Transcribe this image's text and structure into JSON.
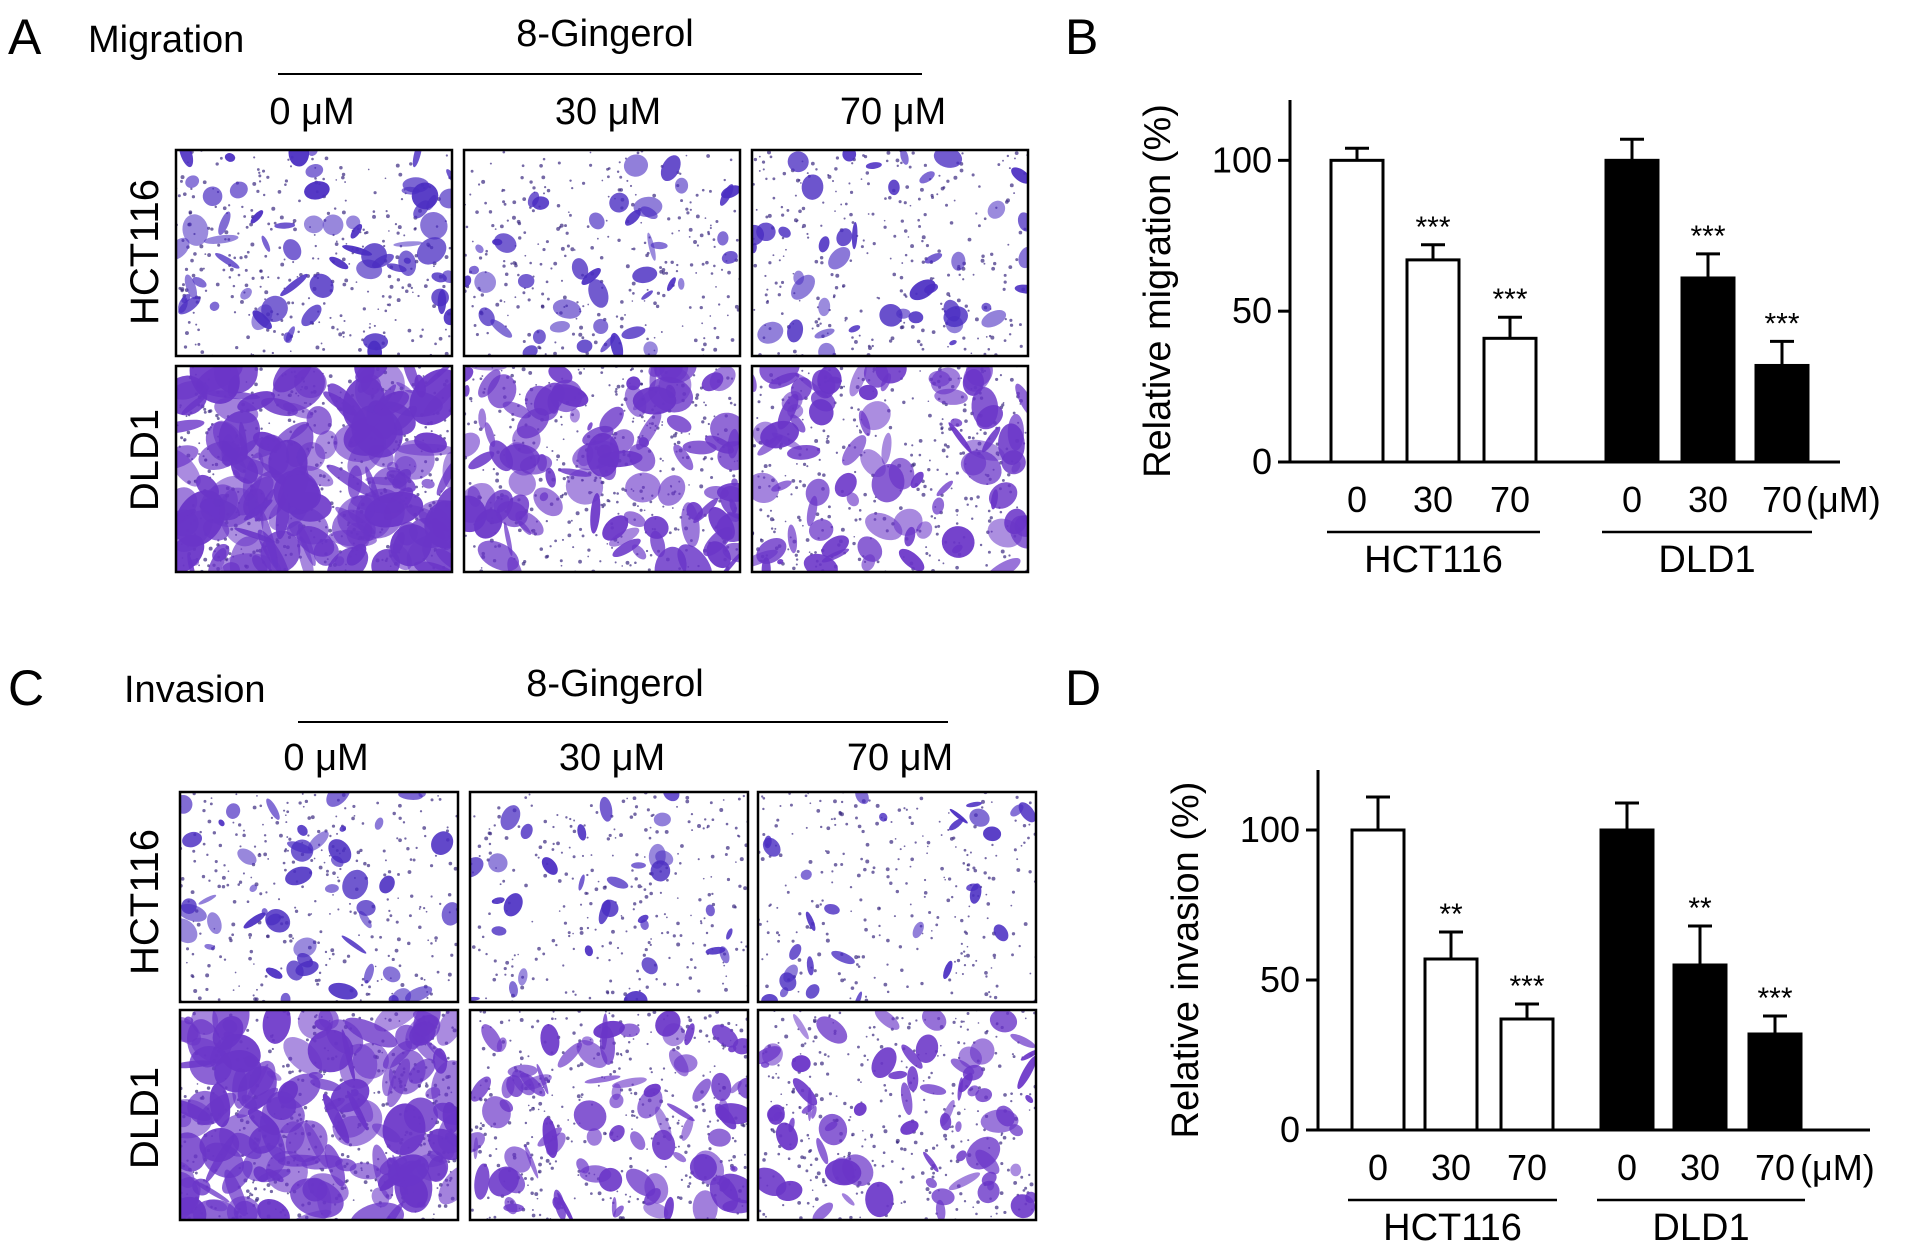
{
  "panels": {
    "A": {
      "letter": "A",
      "assay": "Migration",
      "treatment": "8-Gingerol",
      "concentrations": [
        "0 μM",
        "30 μM",
        "70 μM"
      ],
      "rows": [
        "HCT116",
        "DLD1"
      ]
    },
    "C": {
      "letter": "C",
      "assay": "Invasion",
      "treatment": "8-Gingerol",
      "concentrations": [
        "0 μM",
        "30 μM",
        "70 μM"
      ],
      "rows": [
        "HCT116",
        "DLD1"
      ]
    },
    "B": {
      "letter": "B"
    },
    "D": {
      "letter": "D"
    }
  },
  "colors": {
    "stain_dark": "#4b2ec2",
    "stain_light": "#6a35c8",
    "bar_hct116": "#ffffff",
    "bar_dld1": "#000000"
  },
  "chart_data": [
    {
      "type": "bar",
      "panel": "B",
      "ylabel": "Relative migration (%)",
      "ylim": [
        0,
        120
      ],
      "yticks": [
        "0",
        "50",
        "100"
      ],
      "categories": [
        "0",
        "30",
        "70"
      ],
      "unit": "(μM)",
      "series": [
        {
          "name": "HCT116",
          "values": [
            100,
            67,
            41
          ],
          "errors": [
            4,
            5,
            7
          ],
          "sig": [
            "",
            "***",
            "***"
          ]
        },
        {
          "name": "DLD1",
          "values": [
            100,
            61,
            32
          ],
          "errors": [
            7,
            8,
            8
          ],
          "sig": [
            "",
            "***",
            "***"
          ]
        }
      ]
    },
    {
      "type": "bar",
      "panel": "D",
      "ylabel": "Relative invasion (%)",
      "ylim": [
        0,
        120
      ],
      "yticks": [
        "0",
        "50",
        "100"
      ],
      "categories": [
        "0",
        "30",
        "70"
      ],
      "unit": "(μM)",
      "series": [
        {
          "name": "HCT116",
          "values": [
            100,
            57,
            37
          ],
          "errors": [
            11,
            9,
            5
          ],
          "sig": [
            "",
            "**",
            "***"
          ]
        },
        {
          "name": "DLD1",
          "values": [
            100,
            55,
            32
          ],
          "errors": [
            9,
            13,
            6
          ],
          "sig": [
            "",
            "**",
            "***"
          ]
        }
      ]
    }
  ]
}
